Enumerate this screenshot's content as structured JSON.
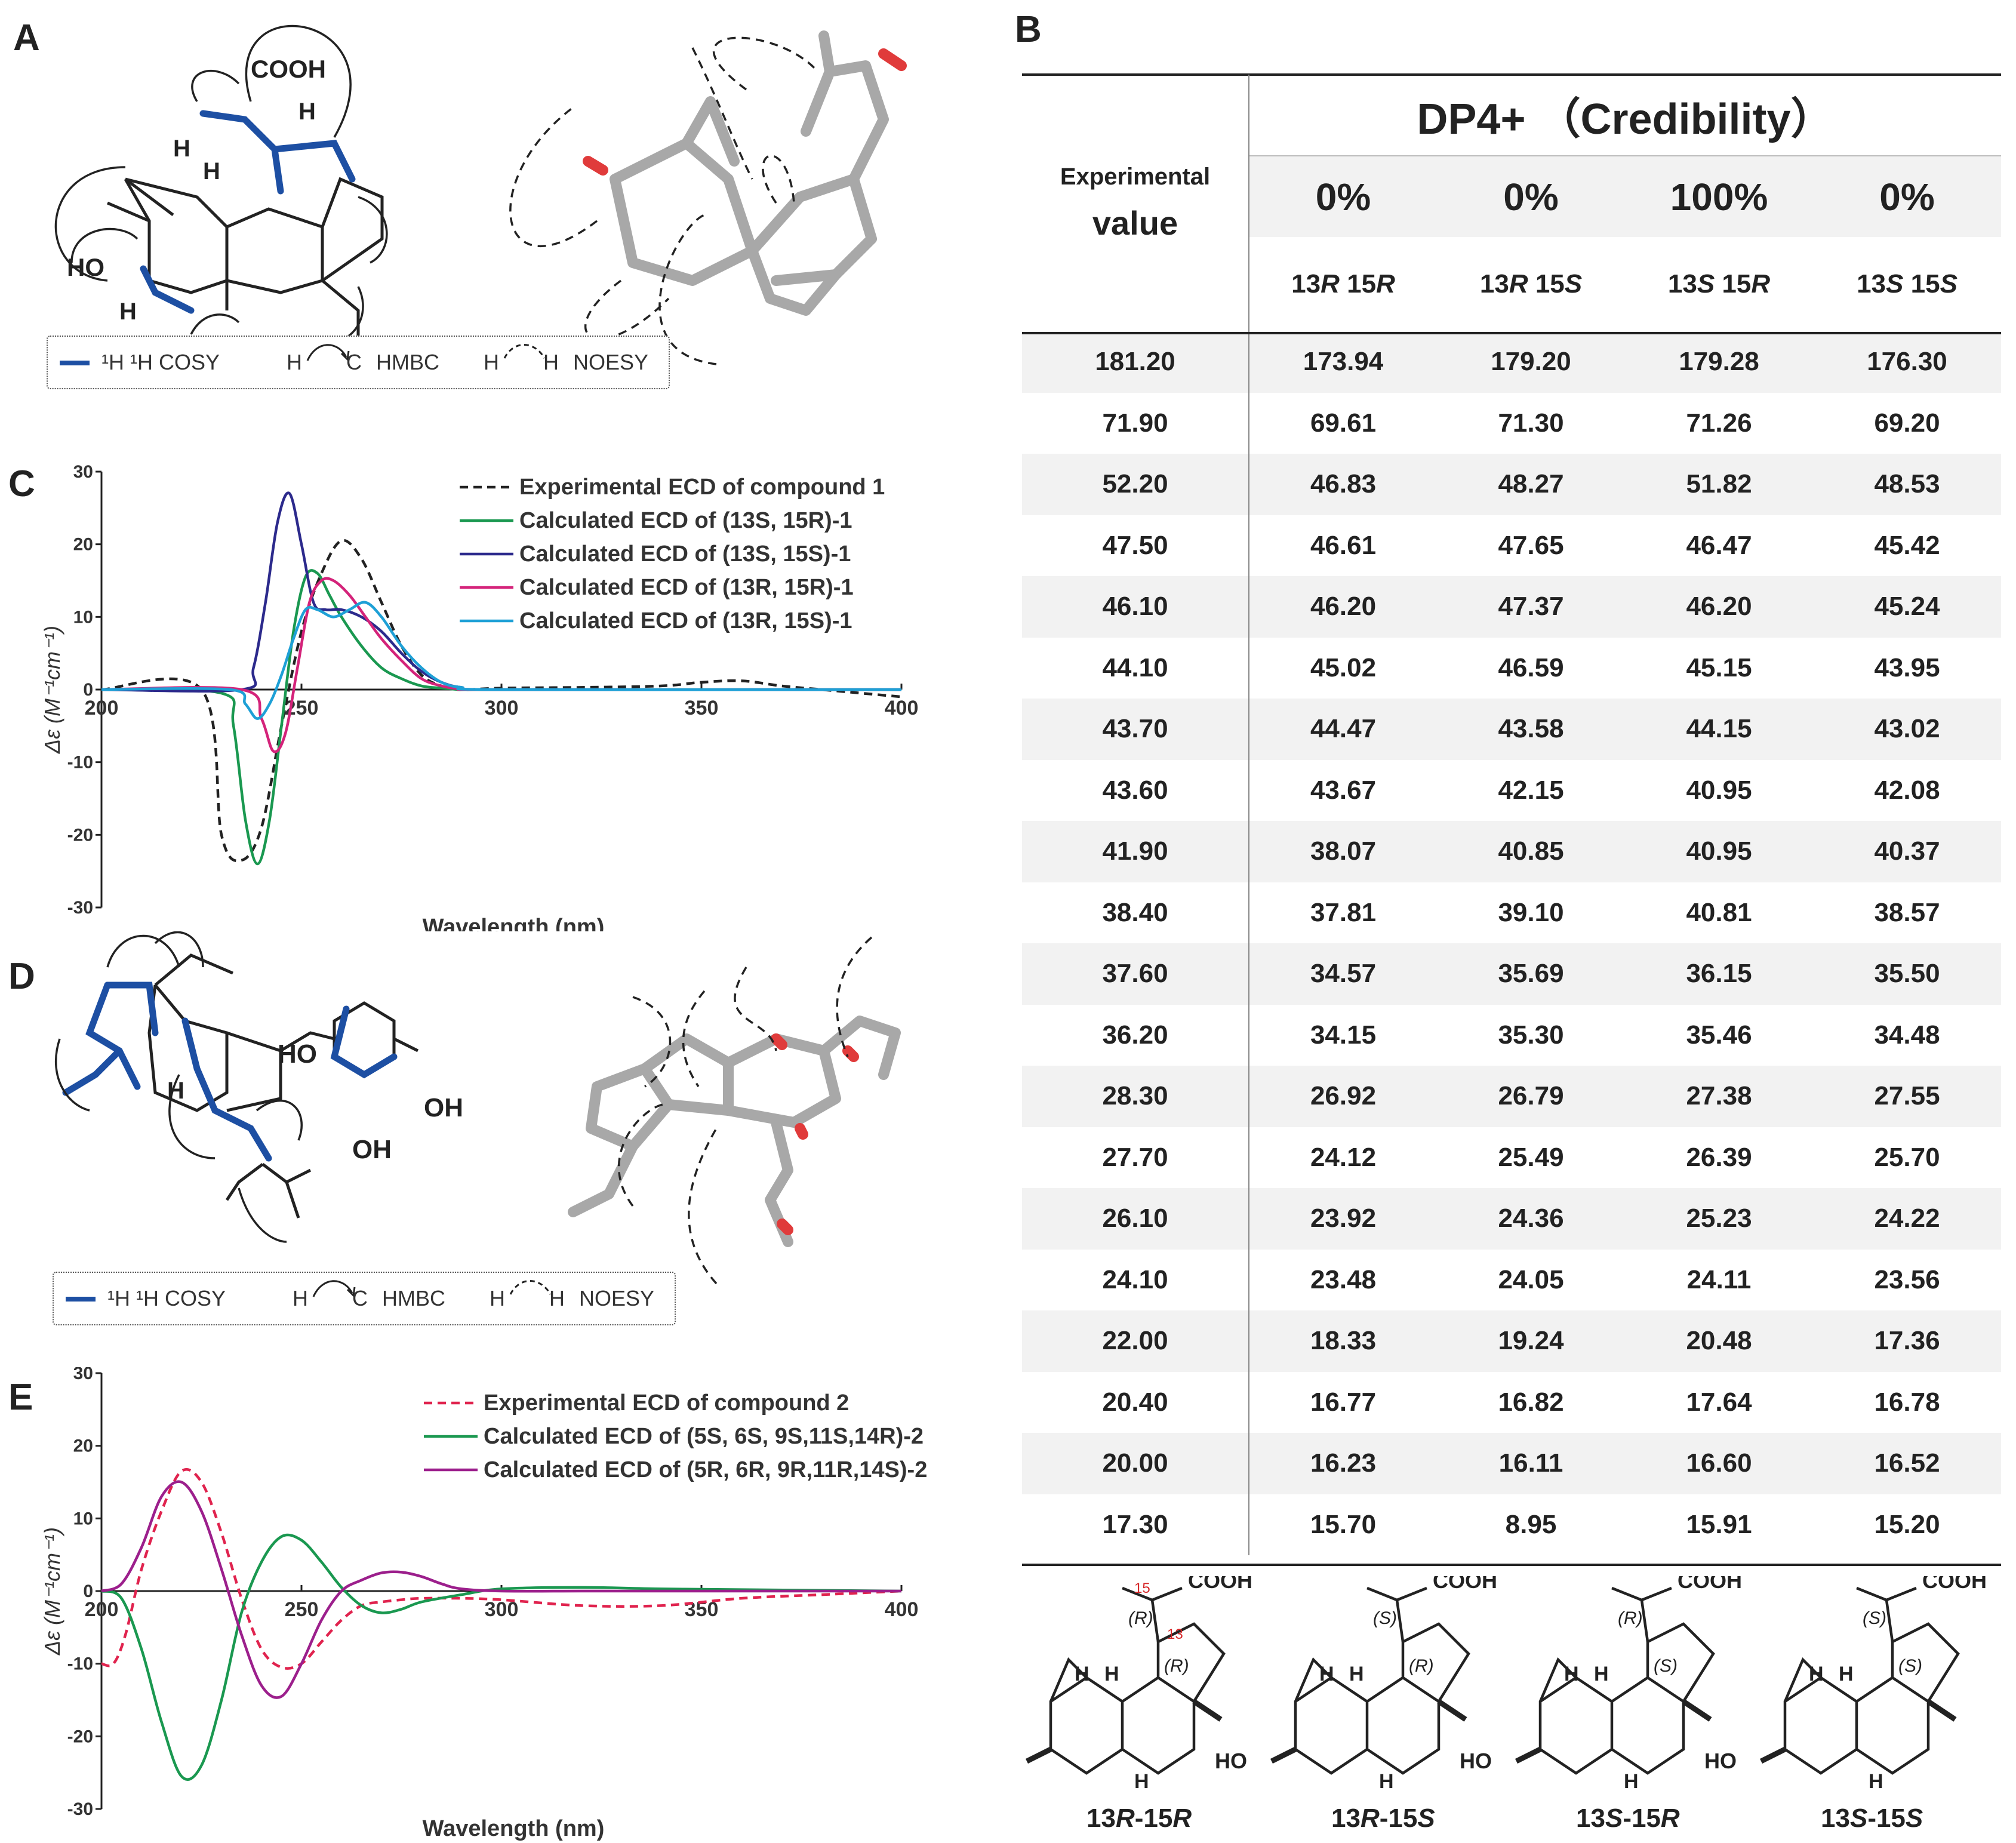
{
  "panels": {
    "a": "A",
    "b": "B",
    "c": "C",
    "d": "D",
    "e": "E"
  },
  "panel_a": {
    "labels": {
      "cooh": "COOH",
      "ho": "HO",
      "h": "H"
    },
    "legend": {
      "cosy": "¹H ¹H COSY",
      "hmbc_h": "H",
      "hmbc_c": "C",
      "hmbc": "HMBC",
      "noesy_h1": "H",
      "noesy_h2": "H",
      "noesy": "NOESY"
    }
  },
  "panel_d": {
    "labels": {
      "oh1": "OH",
      "oh2": "OH",
      "ho": "HO",
      "h": "H"
    },
    "legend": {
      "cosy": "¹H ¹H COSY",
      "hmbc_h": "H",
      "hmbc_c": "C",
      "hmbc": "HMBC",
      "noesy_h1": "H",
      "noesy_h2": "H",
      "noesy": "NOESY"
    }
  },
  "table": {
    "header": "DP4+ （Credibility）",
    "exp_label_1": "Experimental",
    "exp_label_2": "value",
    "percents": [
      "0%",
      "0%",
      "100%",
      "0%"
    ],
    "configs": [
      "13R 15R",
      "13R 15S",
      "13S 15R",
      "13S 15S"
    ],
    "rows": [
      [
        "181.20",
        "173.94",
        "179.20",
        "179.28",
        "176.30"
      ],
      [
        "71.90",
        "69.61",
        "71.30",
        "71.26",
        "69.20"
      ],
      [
        "52.20",
        "46.83",
        "48.27",
        "51.82",
        "48.53"
      ],
      [
        "47.50",
        "46.61",
        "47.65",
        "46.47",
        "45.42"
      ],
      [
        "46.10",
        "46.20",
        "47.37",
        "46.20",
        "45.24"
      ],
      [
        "44.10",
        "45.02",
        "46.59",
        "45.15",
        "43.95"
      ],
      [
        "43.70",
        "44.47",
        "43.58",
        "44.15",
        "43.02"
      ],
      [
        "43.60",
        "43.67",
        "42.15",
        "40.95",
        "42.08"
      ],
      [
        "41.90",
        "38.07",
        "40.85",
        "40.95",
        "40.37"
      ],
      [
        "38.40",
        "37.81",
        "39.10",
        "40.81",
        "38.57"
      ],
      [
        "37.60",
        "34.57",
        "35.69",
        "36.15",
        "35.50"
      ],
      [
        "36.20",
        "34.15",
        "35.30",
        "35.46",
        "34.48"
      ],
      [
        "28.30",
        "26.92",
        "26.79",
        "27.38",
        "27.55"
      ],
      [
        "27.70",
        "24.12",
        "25.49",
        "26.39",
        "25.70"
      ],
      [
        "26.10",
        "23.92",
        "24.36",
        "25.23",
        "24.22"
      ],
      [
        "24.10",
        "23.48",
        "24.05",
        "24.11",
        "23.56"
      ],
      [
        "22.00",
        "18.33",
        "19.24",
        "20.48",
        "17.36"
      ],
      [
        "20.40",
        "16.77",
        "16.82",
        "17.64",
        "16.78"
      ],
      [
        "20.00",
        "16.23",
        "16.11",
        "16.60",
        "16.52"
      ],
      [
        "17.30",
        "15.70",
        "8.95",
        "15.91",
        "15.20"
      ]
    ]
  },
  "structures": {
    "labels": [
      "13R-15R",
      "13R-15S",
      "13S-15R",
      "13S-15S"
    ],
    "cooh": "COOH",
    "ho": "HO",
    "h": "H",
    "n15": "15",
    "n13": "13",
    "stereo": [
      [
        "(R)",
        "(R)"
      ],
      [
        "(S)",
        "(R)"
      ],
      [
        "(R)",
        "(S)"
      ],
      [
        "(S)",
        "(S)"
      ]
    ]
  },
  "chart_data": [
    {
      "type": "line",
      "panel": "C",
      "xlabel": "Wavelength (nm)",
      "ylabel": "Δε (M⁻¹cm⁻¹)",
      "xlim": [
        200,
        400
      ],
      "ylim": [
        -30,
        30
      ],
      "xticks": [
        200,
        250,
        300,
        350,
        400
      ],
      "yticks": [
        30,
        20,
        10,
        0,
        -10,
        -20,
        -30
      ],
      "ytick_labels": [
        "30",
        "20",
        "10",
        "0",
        "-10",
        "-20",
        "-30"
      ],
      "legend": "top-right",
      "series": [
        {
          "name": "Experimental ECD of compound 1",
          "color": "#222222",
          "dash": true,
          "x": [
            200,
            225,
            230,
            235,
            240,
            245,
            250,
            255,
            260,
            265,
            270,
            275,
            280,
            285,
            290,
            300,
            320,
            340,
            350,
            360,
            370,
            380,
            390,
            400
          ],
          "y": [
            0,
            0,
            -20,
            -23.5,
            -19,
            -5,
            8,
            16,
            20.5,
            18,
            12,
            6,
            2,
            0.5,
            0,
            0.2,
            0.3,
            0.5,
            1,
            1.2,
            0.5,
            0,
            -0.5,
            -1
          ]
        },
        {
          "name": "Calculated ECD of (13S, 15R)-1",
          "color": "#1a9850",
          "dash": false,
          "x": [
            200,
            230,
            233,
            236,
            239,
            242,
            245,
            248,
            251,
            254,
            257,
            260,
            265,
            270,
            275,
            280,
            285,
            290,
            300,
            400
          ],
          "y": [
            0,
            -0.5,
            -5,
            -18,
            -24,
            -18,
            -5,
            8,
            15.5,
            16,
            13,
            10,
            6,
            3,
            1.5,
            0.5,
            0.2,
            0,
            0,
            0
          ]
        },
        {
          "name": "Calculated ECD of (13S, 15S)-1",
          "color": "#2c2a8c",
          "dash": false,
          "x": [
            200,
            235,
            238,
            241,
            244,
            247,
            250,
            253,
            256,
            260,
            265,
            270,
            275,
            280,
            285,
            290,
            300,
            400
          ],
          "y": [
            0,
            0,
            3,
            12,
            23,
            27,
            20,
            12,
            11,
            11,
            10,
            8,
            5,
            2.5,
            1,
            0.3,
            0,
            0
          ]
        },
        {
          "name": "Calculated ECD of (13R, 15R)-1",
          "color": "#d4237a",
          "dash": false,
          "x": [
            200,
            235,
            240,
            243,
            246,
            249,
            252,
            255,
            258,
            262,
            266,
            270,
            275,
            280,
            285,
            290,
            300,
            400
          ],
          "y": [
            0,
            0,
            -4,
            -8.5,
            -6,
            3,
            12,
            15,
            15,
            13,
            10,
            7,
            4,
            1.5,
            0.5,
            0.1,
            0,
            0
          ]
        },
        {
          "name": "Calculated ECD of (13R, 15S)-1",
          "color": "#1ea0d6",
          "dash": false,
          "x": [
            200,
            232,
            236,
            239,
            242,
            245,
            248,
            251,
            254,
            258,
            262,
            266,
            270,
            275,
            280,
            285,
            290,
            300,
            400
          ],
          "y": [
            0,
            0,
            -2,
            -4,
            -2,
            2,
            7,
            11,
            11,
            10,
            11,
            12,
            10,
            6,
            3,
            1,
            0.3,
            0,
            0
          ]
        }
      ]
    },
    {
      "type": "line",
      "panel": "E",
      "xlabel": "Wavelength (nm)",
      "ylabel": "Δε (M⁻¹cm⁻¹)",
      "xlim": [
        200,
        400
      ],
      "ylim": [
        -30,
        30
      ],
      "xticks": [
        200,
        250,
        300,
        350,
        400
      ],
      "yticks": [
        30,
        20,
        10,
        0,
        -10,
        -20,
        -30
      ],
      "ytick_labels": [
        "30",
        "20",
        "10",
        "0",
        "-10",
        "-20",
        "-30"
      ],
      "legend": "top-right",
      "series": [
        {
          "name": "Experimental ECD of compound 2",
          "color": "#e0234e",
          "dash": true,
          "x": [
            200,
            203,
            206,
            210,
            215,
            220,
            225,
            230,
            235,
            240,
            245,
            250,
            255,
            260,
            265,
            270,
            275,
            280,
            290,
            300,
            320,
            340,
            360,
            380,
            400
          ],
          "y": [
            -10,
            -10,
            -6,
            3,
            11,
            16.5,
            15,
            8,
            -1,
            -8,
            -10.5,
            -10,
            -7,
            -4,
            -2,
            -1.5,
            -1.2,
            -1,
            -1,
            -1.2,
            -2,
            -2,
            -1,
            -0.5,
            0
          ]
        },
        {
          "name": "Calculated ECD of (5S, 6S, 9S,11S,14R)-2",
          "color": "#1a9850",
          "dash": false,
          "x": [
            200,
            205,
            210,
            215,
            220,
            225,
            230,
            235,
            240,
            245,
            250,
            255,
            260,
            265,
            270,
            275,
            280,
            290,
            300,
            320,
            340,
            360,
            400
          ],
          "y": [
            0,
            -1,
            -8,
            -18,
            -25.5,
            -24,
            -15,
            -3,
            4,
            7.5,
            7,
            4,
            0.5,
            -2,
            -3,
            -2.5,
            -1.5,
            -0.5,
            0.3,
            0.5,
            0.3,
            0.2,
            0
          ]
        },
        {
          "name": "Calculated ECD of (5R, 6R, 9R,11R,14S)-2",
          "color": "#9c1f8c",
          "dash": false,
          "x": [
            200,
            205,
            210,
            215,
            220,
            225,
            230,
            235,
            240,
            245,
            250,
            255,
            260,
            265,
            270,
            275,
            280,
            285,
            290,
            300,
            320,
            340,
            360,
            400
          ],
          "y": [
            0,
            1,
            6,
            13,
            15,
            11,
            3,
            -6,
            -13,
            -14.5,
            -10,
            -4,
            0,
            1.5,
            2.5,
            2.6,
            2,
            1,
            0.3,
            0,
            0,
            0,
            0,
            0
          ]
        }
      ]
    }
  ]
}
